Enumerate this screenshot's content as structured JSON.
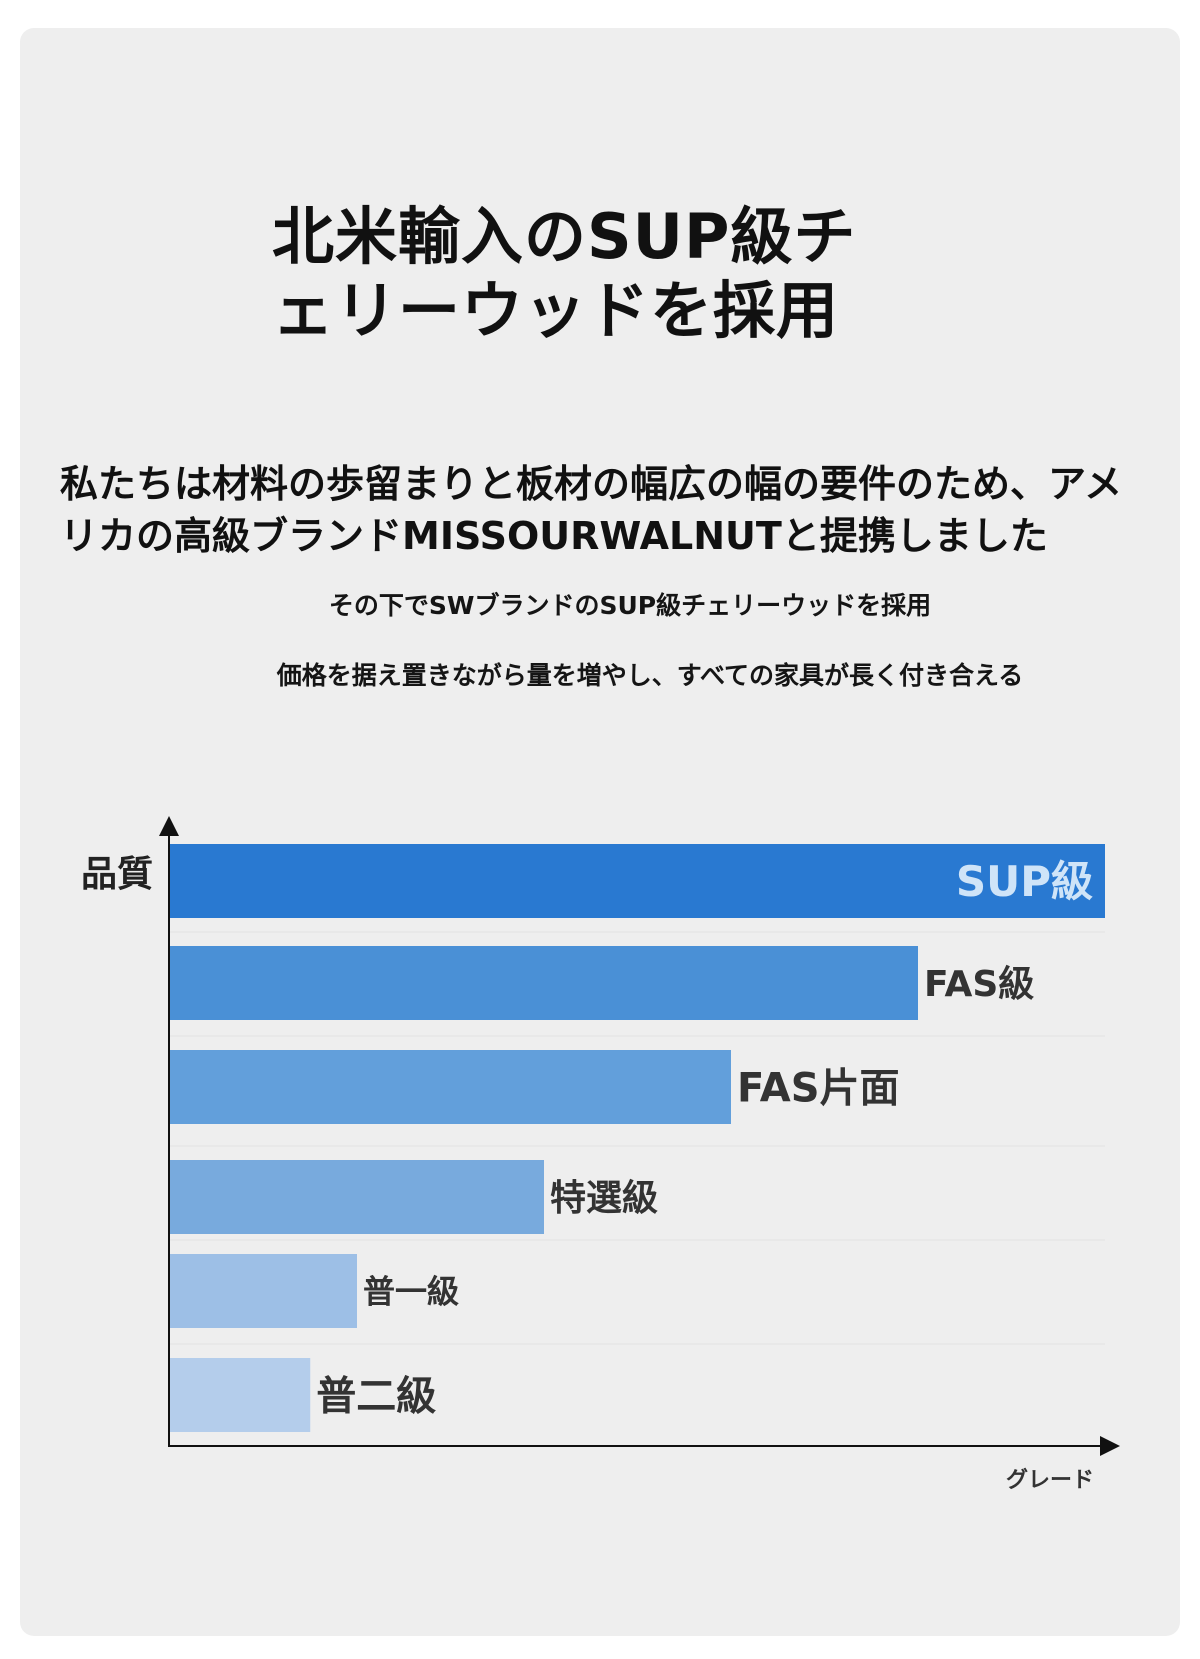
{
  "title": "北米輸入のSUP級チェリーウッドを採用",
  "intro": "私たちは材料の歩留まりと板材の幅広の幅の要件のため、アメリカの高級ブランドMISSOURWALNUTと提携しました",
  "subtitle_1": "その下でSWブランドのSUP級チェリーウッドを採用",
  "subtitle_2": "価格を据え置きながら量を増やし、すべての家具が長く付き合える",
  "chart_data": {
    "type": "bar",
    "orientation": "horizontal",
    "ylabel": "品質",
    "xlabel": "グレード",
    "categories": [
      "SUP級",
      "FAS級",
      "FAS片面",
      "特選級",
      "普一級",
      "普二級"
    ],
    "values": [
      100,
      80,
      60,
      40,
      20,
      15
    ],
    "xlim": [
      0,
      100
    ],
    "colors": [
      "#2979d1",
      "#4a90d6",
      "#629fdb",
      "#78aadd",
      "#9dbfe6",
      "#b4cdeb"
    ],
    "label_colors": [
      "#cfe4f8",
      "#333333",
      "#333333",
      "#333333",
      "#333333",
      "#333333"
    ],
    "grid": false
  }
}
